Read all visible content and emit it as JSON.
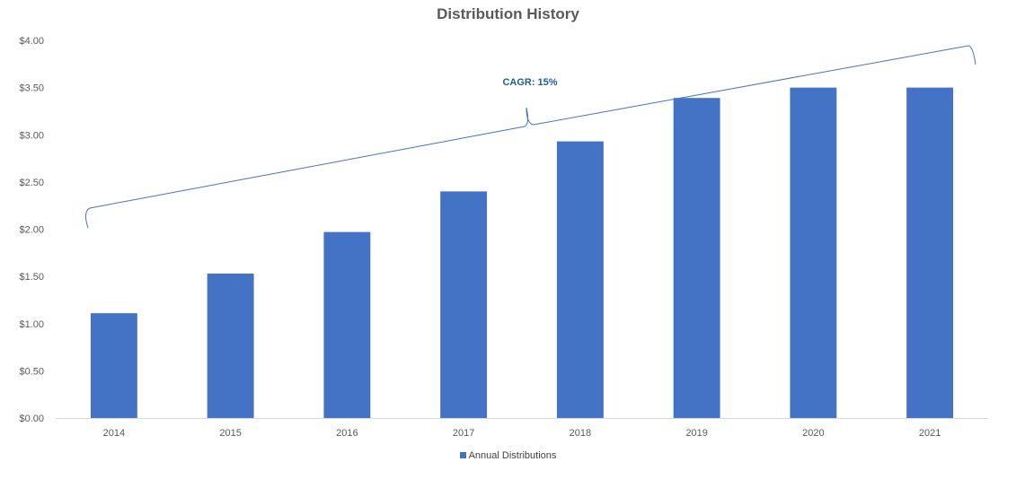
{
  "chart_data": {
    "type": "bar",
    "title": "Distribution History",
    "categories": [
      "2014",
      "2015",
      "2016",
      "2017",
      "2018",
      "2019",
      "2020",
      "2021"
    ],
    "series": [
      {
        "name": "Annual Distributions",
        "values": [
          1.11,
          1.53,
          1.97,
          2.4,
          2.93,
          3.39,
          3.5,
          3.5
        ],
        "color": "#4472C4"
      }
    ],
    "yticks": [
      "$0.00",
      "$0.50",
      "$1.00",
      "$1.50",
      "$2.00",
      "$2.50",
      "$3.00",
      "$3.50",
      "$4.00"
    ],
    "ylim": [
      0,
      4
    ],
    "xlabel": "",
    "ylabel": "",
    "grid": false,
    "legend_position": "bottom",
    "annotation": {
      "text": "CAGR: 15%",
      "color": "#1F5C99",
      "brace_color": "#4472C4"
    }
  }
}
